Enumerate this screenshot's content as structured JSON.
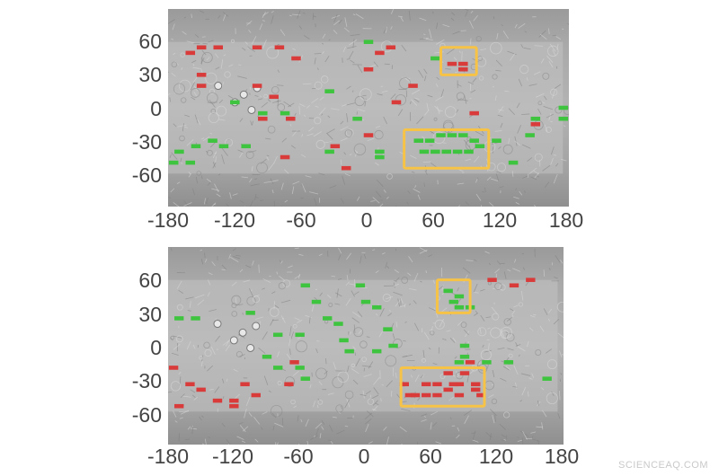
{
  "watermark": "SCIENCEAQ.COM",
  "colors": {
    "positive": "#3ec43e",
    "negative": "#d93b3b",
    "highlight": "#f7c347"
  },
  "maps": [
    {
      "id": "top",
      "x_ticks": [
        "-180",
        "-120",
        "-60",
        "0",
        "60",
        "120",
        "180"
      ],
      "y_ticks": [
        "60",
        "30",
        "0",
        "-30",
        "-60"
      ],
      "red_cells": [
        [
          -150,
          55
        ],
        [
          -135,
          55
        ],
        [
          -100,
          55
        ],
        [
          -80,
          55
        ],
        [
          -65,
          45
        ],
        [
          20,
          55
        ],
        [
          10,
          50
        ],
        [
          -160,
          50
        ],
        [
          -150,
          30
        ],
        [
          -100,
          20
        ],
        [
          -85,
          10
        ],
        [
          -95,
          -10
        ],
        [
          -70,
          -10
        ],
        [
          0,
          35
        ],
        [
          40,
          20
        ],
        [
          25,
          5
        ],
        [
          95,
          -5
        ],
        [
          150,
          -15
        ],
        [
          -150,
          20
        ],
        [
          0,
          -25
        ],
        [
          -30,
          -35
        ],
        [
          -75,
          -45
        ],
        [
          -20,
          -55
        ],
        [
          75,
          40
        ],
        [
          85,
          40
        ],
        [
          85,
          35
        ]
      ],
      "green_cells": [
        [
          0,
          60
        ],
        [
          60,
          45
        ],
        [
          -35,
          15
        ],
        [
          -120,
          5
        ],
        [
          -95,
          -5
        ],
        [
          -75,
          -5
        ],
        [
          -10,
          -10
        ],
        [
          150,
          -10
        ],
        [
          175,
          0
        ],
        [
          175,
          -10
        ],
        [
          -140,
          -30
        ],
        [
          -130,
          -35
        ],
        [
          -110,
          -35
        ],
        [
          -155,
          -35
        ],
        [
          -170,
          -40
        ],
        [
          -160,
          -50
        ],
        [
          -175,
          -50
        ],
        [
          -35,
          -40
        ],
        [
          10,
          -40
        ],
        [
          10,
          -45
        ],
        [
          45,
          -30
        ],
        [
          55,
          -30
        ],
        [
          65,
          -25
        ],
        [
          75,
          -25
        ],
        [
          85,
          -25
        ],
        [
          95,
          -30
        ],
        [
          50,
          -40
        ],
        [
          60,
          -40
        ],
        [
          70,
          -40
        ],
        [
          80,
          -40
        ],
        [
          90,
          -40
        ],
        [
          100,
          -35
        ],
        [
          115,
          -30
        ],
        [
          130,
          -50
        ],
        [
          145,
          -25
        ]
      ],
      "highlight_boxes": [
        [
          65,
          30,
          97,
          55
        ],
        [
          32,
          -55,
          108,
          -20
        ]
      ]
    },
    {
      "id": "bottom",
      "x_ticks": [
        "-180",
        "-120",
        "-60",
        "0",
        "60",
        "120",
        "180"
      ],
      "y_ticks": [
        "60",
        "30",
        "0",
        "-30",
        "-60"
      ],
      "red_cells": [
        [
          115,
          60
        ],
        [
          135,
          55
        ],
        [
          150,
          60
        ],
        [
          -175,
          -20
        ],
        [
          -160,
          -35
        ],
        [
          -150,
          -40
        ],
        [
          -135,
          -50
        ],
        [
          -120,
          -50
        ],
        [
          -120,
          -55
        ],
        [
          -170,
          -55
        ],
        [
          -110,
          -35
        ],
        [
          -100,
          -45
        ],
        [
          -70,
          -35
        ],
        [
          -65,
          -15
        ],
        [
          80,
          -35
        ],
        [
          85,
          -45
        ],
        [
          90,
          -25
        ],
        [
          95,
          -15
        ],
        [
          35,
          -35
        ],
        [
          40,
          -45
        ],
        [
          45,
          -45
        ],
        [
          55,
          -35
        ],
        [
          55,
          -45
        ],
        [
          65,
          -35
        ],
        [
          65,
          -45
        ],
        [
          75,
          -25
        ],
        [
          75,
          -40
        ],
        [
          85,
          -35
        ],
        [
          100,
          -40
        ],
        [
          105,
          -45
        ],
        [
          100,
          -35
        ]
      ],
      "green_cells": [
        [
          -170,
          25
        ],
        [
          -155,
          25
        ],
        [
          -105,
          30
        ],
        [
          -55,
          55
        ],
        [
          -45,
          40
        ],
        [
          -35,
          25
        ],
        [
          -25,
          20
        ],
        [
          -20,
          5
        ],
        [
          -15,
          -5
        ],
        [
          -5,
          55
        ],
        [
          0,
          40
        ],
        [
          10,
          35
        ],
        [
          20,
          15
        ],
        [
          25,
          0
        ],
        [
          -80,
          10
        ],
        [
          -60,
          10
        ],
        [
          -90,
          -10
        ],
        [
          -80,
          -20
        ],
        [
          -60,
          -20
        ],
        [
          -55,
          -30
        ],
        [
          10,
          -5
        ],
        [
          75,
          50
        ],
        [
          80,
          40
        ],
        [
          85,
          35
        ],
        [
          85,
          45
        ],
        [
          95,
          35
        ],
        [
          90,
          0
        ],
        [
          90,
          -10
        ],
        [
          130,
          -15
        ],
        [
          165,
          -30
        ],
        [
          110,
          -15
        ],
        [
          85,
          -15
        ]
      ],
      "highlight_boxes": [
        [
          65,
          30,
          95,
          60
        ],
        [
          32,
          -55,
          108,
          -20
        ]
      ]
    }
  ]
}
